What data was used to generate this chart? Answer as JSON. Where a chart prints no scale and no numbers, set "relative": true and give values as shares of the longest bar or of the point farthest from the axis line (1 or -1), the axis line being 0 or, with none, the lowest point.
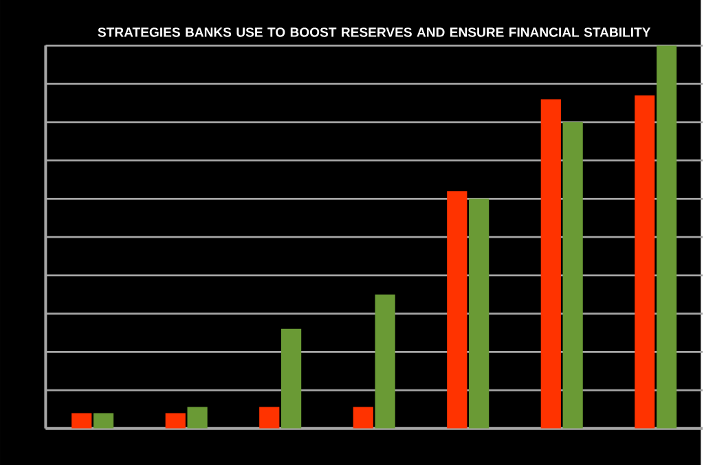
{
  "chart_data": {
    "type": "bar",
    "title": "STRATEGIES BANKS USE TO BOOST RESERVES AND ENSURE FINANCIAL STABILITY",
    "relative": true,
    "grid": "y",
    "categories": [
      null,
      null,
      null,
      null,
      null,
      null,
      null
    ],
    "series": [
      {
        "color": "#ff3300",
        "values": [
          0.04,
          0.04,
          0.056,
          0.056,
          0.62,
          0.86,
          0.87
        ]
      },
      {
        "color": "#6a9a35",
        "values": [
          0.04,
          0.056,
          0.26,
          0.35,
          0.6,
          0.8,
          1.0
        ]
      }
    ]
  }
}
